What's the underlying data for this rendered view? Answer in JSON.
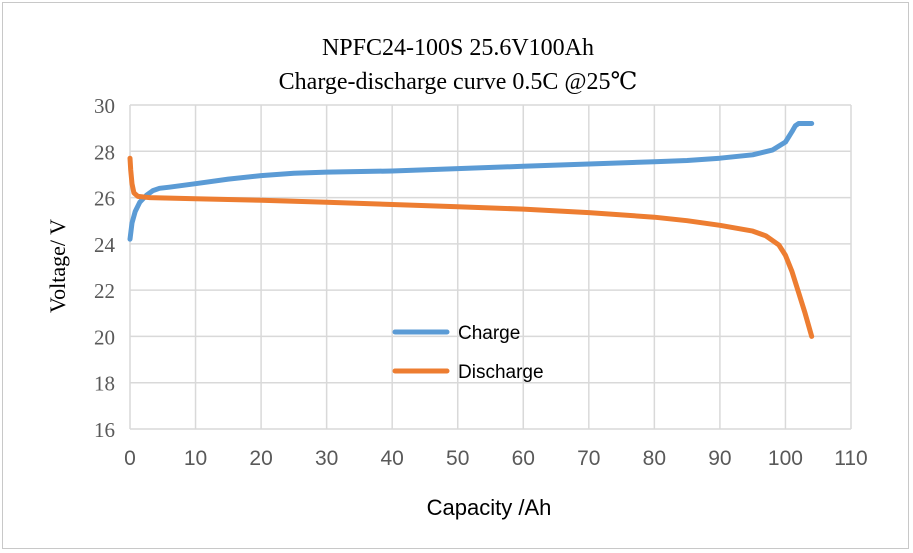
{
  "chart_data": {
    "type": "line",
    "title": "NPFC24-100S 25.6V100Ah",
    "subtitle": "Charge-discharge curve 0.5C @25℃",
    "xlabel": "Capacity /Ah",
    "ylabel": "Voltage/ V",
    "xlim": [
      0,
      110
    ],
    "ylim": [
      16,
      30
    ],
    "xticks": [
      0,
      10,
      20,
      30,
      40,
      50,
      60,
      70,
      80,
      90,
      100,
      110
    ],
    "yticks": [
      16,
      18,
      20,
      22,
      24,
      26,
      28,
      30
    ],
    "grid": true,
    "legend_position": "center",
    "series": [
      {
        "name": "Charge",
        "color": "#5b9bd5",
        "x": [
          0,
          0.3,
          0.8,
          1.5,
          2.5,
          3.5,
          4.5,
          6,
          10,
          15,
          20,
          25,
          30,
          40,
          50,
          60,
          70,
          80,
          85,
          90,
          95,
          98,
          100,
          101,
          101.5,
          102,
          104
        ],
        "y": [
          24.2,
          24.9,
          25.4,
          25.8,
          26.1,
          26.3,
          26.4,
          26.45,
          26.6,
          26.8,
          26.95,
          27.05,
          27.1,
          27.15,
          27.25,
          27.35,
          27.45,
          27.55,
          27.6,
          27.7,
          27.85,
          28.05,
          28.4,
          28.85,
          29.1,
          29.2,
          29.2
        ]
      },
      {
        "name": "Discharge",
        "color": "#ed7d31",
        "x": [
          0,
          0.1,
          0.3,
          0.6,
          1.2,
          3,
          10,
          20,
          30,
          40,
          50,
          60,
          70,
          80,
          85,
          90,
          95,
          97,
          99,
          100,
          101,
          102,
          103,
          104
        ],
        "y": [
          27.7,
          27.2,
          26.6,
          26.2,
          26.05,
          26.0,
          25.95,
          25.88,
          25.8,
          25.7,
          25.6,
          25.5,
          25.35,
          25.15,
          25.0,
          24.8,
          24.55,
          24.35,
          23.95,
          23.5,
          22.8,
          21.9,
          21.0,
          20.0
        ]
      }
    ]
  }
}
